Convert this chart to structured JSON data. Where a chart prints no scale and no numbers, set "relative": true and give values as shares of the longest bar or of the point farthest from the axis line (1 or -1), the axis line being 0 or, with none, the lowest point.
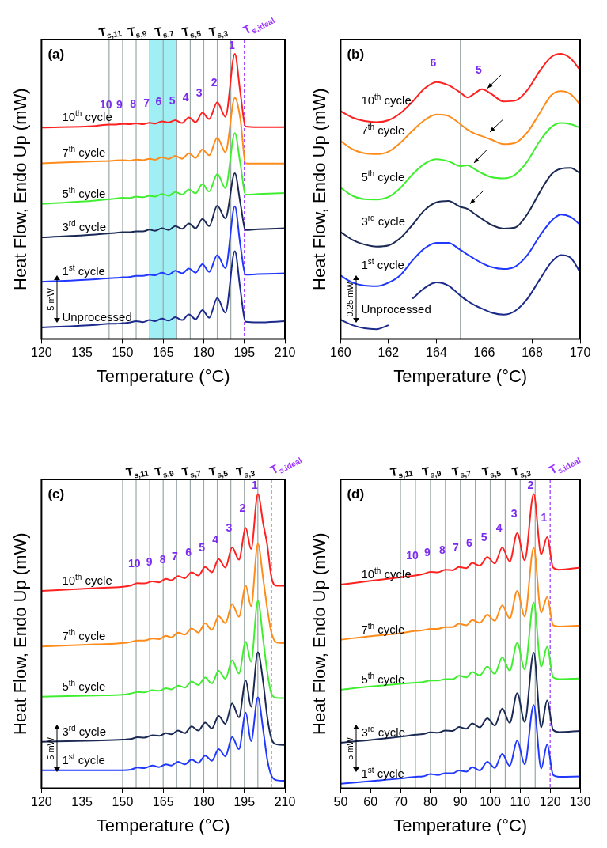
{
  "chart_data": [
    {
      "type": "line",
      "relative": true,
      "xlabel": "Temperature (°C)",
      "ylabel": "Heat Flow, Endo Up (mW)",
      "xlim": [
        120,
        210
      ],
      "xticks": [
        120,
        135,
        150,
        165,
        180,
        195,
        210
      ],
      "legend": false,
      "x": [
        120,
        140,
        145,
        147.5,
        150,
        152.5,
        155,
        157.5,
        160,
        162,
        164.5,
        167,
        169.5,
        172,
        174.5,
        177,
        179.5,
        182,
        185,
        188,
        191.5,
        193.5,
        195.5,
        200,
        210
      ],
      "series": [
        {
          "name": "10$^{th}$ cycle",
          "color": "#ff2020",
          "values": [
            0.741,
            0.747,
            0.752,
            0.752,
            0.754,
            0.753,
            0.756,
            0.753,
            0.758,
            0.755,
            0.763,
            0.759,
            0.767,
            0.757,
            0.777,
            0.76,
            0.793,
            0.771,
            0.83,
            0.779,
            1.0,
            0.865,
            0.745,
            0.743,
            0.743
          ]
        },
        {
          "name": "7$^{th}$ cycle",
          "color": "#ff8c1a",
          "values": [
            0.616,
            0.623,
            0.624,
            0.626,
            0.627,
            0.625,
            0.629,
            0.627,
            0.632,
            0.628,
            0.637,
            0.631,
            0.642,
            0.632,
            0.651,
            0.635,
            0.664,
            0.644,
            0.706,
            0.655,
            0.846,
            0.773,
            0.616,
            0.615,
            0.615
          ]
        },
        {
          "name": "5$^{th}$ cycle",
          "color": "#40ee30",
          "values": [
            0.474,
            0.485,
            0.49,
            0.492,
            0.495,
            0.494,
            0.499,
            0.497,
            0.502,
            0.499,
            0.508,
            0.502,
            0.515,
            0.506,
            0.524,
            0.511,
            0.543,
            0.517,
            0.578,
            0.529,
            0.722,
            0.616,
            0.506,
            0.508,
            0.512
          ]
        },
        {
          "name": "3$^{rd}$ cycle",
          "color": "#1b2a55",
          "values": [
            0.356,
            0.366,
            0.37,
            0.372,
            0.374,
            0.374,
            0.377,
            0.377,
            0.383,
            0.379,
            0.388,
            0.382,
            0.396,
            0.386,
            0.405,
            0.388,
            0.421,
            0.396,
            0.467,
            0.423,
            0.581,
            0.478,
            0.382,
            0.385,
            0.388
          ]
        },
        {
          "name": "1$^{st}$ cycle",
          "color": "#2038ff",
          "values": [
            0.2,
            0.209,
            0.213,
            0.214,
            0.216,
            0.217,
            0.221,
            0.221,
            0.225,
            0.223,
            0.232,
            0.225,
            0.239,
            0.23,
            0.247,
            0.232,
            0.262,
            0.235,
            0.294,
            0.248,
            0.465,
            0.331,
            0.225,
            0.227,
            0.23
          ]
        },
        {
          "name": "Unprocessed",
          "color": "#1c2a8c",
          "values": [
            0.04,
            0.049,
            0.053,
            0.053,
            0.055,
            0.057,
            0.062,
            0.059,
            0.066,
            0.062,
            0.071,
            0.064,
            0.076,
            0.066,
            0.086,
            0.069,
            0.101,
            0.074,
            0.143,
            0.092,
            0.308,
            0.175,
            0.06,
            0.058,
            0.062
          ]
        }
      ],
      "ref_lines": [
        {
          "axis": "x",
          "value": 145,
          "label": "T$_{s,11}$",
          "color": "#9aa8a6"
        },
        {
          "axis": "x",
          "value": 150,
          "label": null,
          "color": "#9aa8a6"
        },
        {
          "axis": "x",
          "value": 155,
          "label": "T$_{s,9}$",
          "color": "#9aa8a6"
        },
        {
          "axis": "x",
          "value": 160,
          "label": null,
          "color": "#9aa8a6"
        },
        {
          "axis": "x",
          "value": 165,
          "label": "T$_{s,7}$",
          "color": "#9aa8a6"
        },
        {
          "axis": "x",
          "value": 170,
          "label": null,
          "color": "#9aa8a6"
        },
        {
          "axis": "x",
          "value": 175,
          "label": "T$_{s,5}$",
          "color": "#9aa8a6"
        },
        {
          "axis": "x",
          "value": 180,
          "label": null,
          "color": "#9aa8a6"
        },
        {
          "axis": "x",
          "value": 185,
          "label": "T$_{s,3}$",
          "color": "#9aa8a6"
        },
        {
          "axis": "x",
          "value": 190,
          "label": null,
          "color": "#9aa8a6"
        },
        {
          "axis": "x",
          "value": 195,
          "label": "T$_{s,ideal}$",
          "color": "#9b30ff",
          "line_style": "dashed"
        }
      ],
      "bands": [
        {
          "axis": "x",
          "from": 160,
          "to": 170,
          "label": null,
          "color": "#8fecf2"
        }
      ],
      "annotations": [
        "(a)",
        "5 mW",
        {
          "text": "10",
          "x": 145,
          "y": 0.752
        },
        {
          "text": "9",
          "x": 150,
          "y": 0.754
        },
        {
          "text": "8",
          "x": 155,
          "y": 0.756
        },
        {
          "text": "7",
          "x": 160,
          "y": 0.758
        },
        {
          "text": "6",
          "x": 164.5,
          "y": 0.763
        },
        {
          "text": "5",
          "x": 169.5,
          "y": 0.767
        },
        {
          "text": "4",
          "x": 174.5,
          "y": 0.777
        },
        {
          "text": "3",
          "x": 179.5,
          "y": 0.793
        },
        {
          "text": "2",
          "x": 185,
          "y": 0.83
        },
        {
          "text": "1",
          "x": 191.5,
          "y": 1.0
        }
      ]
    },
    {
      "type": "line",
      "relative": true,
      "xlabel": "Temperature (°C)",
      "ylabel": "Heat Flow, Endo Up (mW)",
      "xlim": [
        160,
        170
      ],
      "xticks": [
        160,
        162,
        164,
        166,
        168,
        170
      ],
      "legend": false,
      "x": [
        160,
        160.5,
        161,
        161.5,
        162,
        162.5,
        163,
        163.5,
        164,
        164.5,
        165,
        165.3,
        165.6,
        165.9,
        166.3,
        166.8,
        167.3,
        167.8,
        168.3,
        168.8,
        169.2,
        169.6,
        170
      ],
      "series": [
        {
          "name": "10$^{th}$ cycle",
          "color": "#ff2020",
          "values": [
            0.799,
            0.776,
            0.764,
            0.76,
            0.767,
            0.792,
            0.832,
            0.878,
            0.901,
            0.89,
            0.864,
            0.847,
            0.861,
            0.876,
            0.859,
            0.833,
            0.836,
            0.873,
            0.938,
            0.989,
            1.0,
            0.984,
            0.943
          ]
        },
        {
          "name": "7$^{th}$ cycle",
          "color": "#ff8c1a",
          "values": [
            0.694,
            0.665,
            0.651,
            0.648,
            0.657,
            0.688,
            0.73,
            0.767,
            0.787,
            0.782,
            0.753,
            0.734,
            0.72,
            0.711,
            0.699,
            0.683,
            0.688,
            0.725,
            0.79,
            0.855,
            0.869,
            0.859,
            0.822
          ]
        },
        {
          "name": "5$^{th}$ cycle",
          "color": "#40ee30",
          "values": [
            0.53,
            0.502,
            0.49,
            0.489,
            0.498,
            0.53,
            0.577,
            0.614,
            0.63,
            0.623,
            0.606,
            0.609,
            0.595,
            0.581,
            0.567,
            0.563,
            0.577,
            0.623,
            0.692,
            0.743,
            0.757,
            0.753,
            0.741
          ]
        },
        {
          "name": "3$^{rd}$ cycle",
          "color": "#1b2a55",
          "values": [
            0.375,
            0.347,
            0.331,
            0.324,
            0.328,
            0.354,
            0.4,
            0.451,
            0.479,
            0.484,
            0.463,
            0.456,
            0.438,
            0.421,
            0.4,
            0.387,
            0.391,
            0.438,
            0.512,
            0.577,
            0.597,
            0.6,
            0.581
          ]
        },
        {
          "name": "1$^{st}$ cycle",
          "color": "#2038ff",
          "values": [
            0.222,
            0.197,
            0.187,
            0.185,
            0.197,
            0.224,
            0.275,
            0.317,
            0.337,
            0.337,
            0.312,
            0.296,
            0.28,
            0.266,
            0.252,
            0.245,
            0.254,
            0.294,
            0.359,
            0.414,
            0.436,
            0.428,
            0.4
          ]
        },
        {
          "name": "Unprocessed",
          "color": "#1c2a8c",
          "values": [
            0.067,
            0.048,
            0.037,
            0.034,
            0.048,
            null,
            0.141,
            0.178,
            0.198,
            0.187,
            0.152,
            0.133,
            0.118,
            0.106,
            0.092,
            0.085,
            0.099,
            0.141,
            0.206,
            0.269,
            0.294,
            0.285,
            0.234
          ]
        }
      ],
      "ref_lines": [
        {
          "axis": "x",
          "value": 165,
          "label": null,
          "color": "#9aa8a6"
        }
      ],
      "annotations": [
        "(b)",
        "0.25 mW",
        {
          "text": "6",
          "x": 164,
          "y": 0.901
        },
        {
          "text": "5",
          "x": 165.9,
          "y": 0.876
        }
      ]
    },
    {
      "type": "line",
      "relative": true,
      "xlabel": "Temperature (°C)",
      "ylabel": "Heat Flow, Endo Up (mW)",
      "xlim": [
        120,
        210
      ],
      "xticks": [
        120,
        135,
        150,
        165,
        180,
        195,
        210
      ],
      "legend": false,
      "x": [
        120,
        140,
        150,
        153,
        155.5,
        158,
        161,
        163.5,
        166,
        168,
        170.5,
        173,
        175.5,
        178,
        180.5,
        183,
        185.5,
        188,
        190.5,
        193,
        195.5,
        197.5,
        200,
        202,
        203.5,
        205,
        207,
        210
      ],
      "series": [
        {
          "name": "10$^{th}$ cycle",
          "color": "#ff2020",
          "values": [
            0.671,
            0.68,
            0.685,
            0.689,
            0.697,
            0.696,
            0.703,
            0.7,
            0.712,
            0.707,
            0.721,
            0.714,
            0.734,
            0.723,
            0.752,
            0.734,
            0.779,
            0.75,
            0.819,
            0.777,
            0.885,
            0.813,
            1.0,
            0.898,
            0.826,
            0.718,
            0.688,
            0.688
          ]
        },
        {
          "name": "7$^{th}$ cycle",
          "color": "#ff8c1a",
          "values": [
            0.482,
            0.489,
            0.493,
            0.497,
            0.502,
            0.502,
            0.509,
            0.507,
            0.518,
            0.513,
            0.529,
            0.522,
            0.543,
            0.529,
            0.561,
            0.538,
            0.585,
            0.561,
            0.626,
            0.583,
            0.689,
            0.619,
            0.831,
            0.709,
            0.61,
            0.529,
            0.495,
            0.493
          ]
        },
        {
          "name": "5$^{th}$ cycle",
          "color": "#40ee30",
          "values": [
            0.311,
            0.315,
            0.318,
            0.322,
            0.327,
            0.326,
            0.333,
            0.331,
            0.34,
            0.336,
            0.349,
            0.342,
            0.363,
            0.351,
            0.376,
            0.356,
            0.399,
            0.372,
            0.435,
            0.39,
            0.498,
            0.43,
            0.637,
            0.502,
            0.394,
            0.322,
            0.307,
            0.306
          ]
        },
        {
          "name": "3$^{rd}$ cycle",
          "color": "#1b2a55",
          "values": [
            0.158,
            0.162,
            0.165,
            0.167,
            0.173,
            0.172,
            0.18,
            0.178,
            0.187,
            0.183,
            0.196,
            0.187,
            0.21,
            0.196,
            0.223,
            0.203,
            0.246,
            0.219,
            0.288,
            0.241,
            0.367,
            0.277,
            0.462,
            0.358,
            0.241,
            0.169,
            0.149,
            0.147
          ]
        },
        {
          "name": "1$^{st}$ cycle",
          "color": "#2038ff",
          "values": [
            0.061,
            0.061,
            0.061,
            0.063,
            0.07,
            0.068,
            0.077,
            0.072,
            0.081,
            0.077,
            0.09,
            0.081,
            0.097,
            0.086,
            0.111,
            0.093,
            0.133,
            0.108,
            0.174,
            0.133,
            0.257,
            0.16,
            0.309,
            0.196,
            0.097,
            0.043,
            0.027,
            0.025
          ]
        }
      ],
      "ref_lines": [
        {
          "axis": "x",
          "value": 150,
          "label": null,
          "color": "#9aa8a6"
        },
        {
          "axis": "x",
          "value": 155,
          "label": "T$_{s,11}$",
          "color": "#9aa8a6"
        },
        {
          "axis": "x",
          "value": 160,
          "label": null,
          "color": "#9aa8a6"
        },
        {
          "axis": "x",
          "value": 165,
          "label": "T$_{s,9}$",
          "color": "#9aa8a6"
        },
        {
          "axis": "x",
          "value": 170,
          "label": null,
          "color": "#9aa8a6"
        },
        {
          "axis": "x",
          "value": 175,
          "label": "T$_{s,7}$",
          "color": "#9aa8a6"
        },
        {
          "axis": "x",
          "value": 180,
          "label": null,
          "color": "#9aa8a6"
        },
        {
          "axis": "x",
          "value": 185,
          "label": "T$_{s,5}$",
          "color": "#9aa8a6"
        },
        {
          "axis": "x",
          "value": 190,
          "label": null,
          "color": "#9aa8a6"
        },
        {
          "axis": "x",
          "value": 195,
          "label": "T$_{s,3}$",
          "color": "#9aa8a6"
        },
        {
          "axis": "x",
          "value": 200,
          "label": null,
          "color": "#9aa8a6"
        },
        {
          "axis": "x",
          "value": 205,
          "label": "T$_{s,ideal}$",
          "color": "#9b30ff",
          "line_style": "dashed"
        }
      ],
      "annotations": [
        "(c)",
        "5 mW",
        {
          "text": "10",
          "x": 155.5,
          "y": 0.697
        },
        {
          "text": "9",
          "x": 161,
          "y": 0.703
        },
        {
          "text": "8",
          "x": 166,
          "y": 0.712
        },
        {
          "text": "7",
          "x": 170.5,
          "y": 0.721
        },
        {
          "text": "6",
          "x": 175.5,
          "y": 0.734
        },
        {
          "text": "5",
          "x": 180.5,
          "y": 0.752
        },
        {
          "text": "4",
          "x": 185.5,
          "y": 0.779
        },
        {
          "text": "3",
          "x": 190.5,
          "y": 0.819
        },
        {
          "text": "2",
          "x": 195.5,
          "y": 0.885
        },
        {
          "text": "1",
          "x": 200,
          "y": 1.0
        }
      ]
    },
    {
      "type": "line",
      "relative": true,
      "xlabel": "Temperature (°C)",
      "ylabel": "Heat Flow, Endo Up (mW)",
      "xlim": [
        50,
        130
      ],
      "xticks": [
        50,
        60,
        70,
        80,
        90,
        100,
        110,
        120,
        130
      ],
      "legend": false,
      "x": [
        50,
        60,
        70,
        75,
        77.5,
        80,
        82.5,
        85,
        87.5,
        89.5,
        92,
        94,
        96.5,
        99,
        101.5,
        104,
        106.5,
        109,
        111.5,
        114.5,
        117,
        119,
        121,
        123,
        130
      ],
      "series": [
        {
          "name": "10$^{th}$ cycle",
          "color": "#ff2020",
          "values": [
            0.692,
            0.705,
            0.717,
            0.723,
            0.728,
            0.735,
            0.734,
            0.743,
            0.741,
            0.752,
            0.748,
            0.766,
            0.757,
            0.786,
            0.764,
            0.818,
            0.771,
            0.867,
            0.775,
            1.0,
            0.795,
            0.854,
            0.75,
            0.743,
            0.75
          ]
        },
        {
          "name": "7$^{th}$ cycle",
          "color": "#ff8c1a",
          "values": [
            0.505,
            0.517,
            0.527,
            0.535,
            0.537,
            0.542,
            0.542,
            0.548,
            0.548,
            0.559,
            0.554,
            0.572,
            0.562,
            0.59,
            0.569,
            0.622,
            0.578,
            0.671,
            0.584,
            0.818,
            0.597,
            0.65,
            0.554,
            0.55,
            0.553
          ]
        },
        {
          "name": "5$^{th}$ cycle",
          "color": "#40ee30",
          "values": [
            0.335,
            0.346,
            0.355,
            0.359,
            0.361,
            0.366,
            0.366,
            0.371,
            0.371,
            0.382,
            0.377,
            0.395,
            0.384,
            0.413,
            0.389,
            0.445,
            0.4,
            0.494,
            0.404,
            0.632,
            0.413,
            0.481,
            0.377,
            0.371,
            0.373
          ]
        },
        {
          "name": "3$^{rd}$ cycle",
          "color": "#1b2a55",
          "values": [
            0.155,
            0.164,
            0.175,
            0.182,
            0.184,
            0.19,
            0.189,
            0.196,
            0.195,
            0.208,
            0.202,
            0.22,
            0.207,
            0.238,
            0.213,
            0.271,
            0.222,
            0.323,
            0.225,
            0.461,
            0.207,
            0.298,
            0.198,
            0.191,
            0.195
          ]
        },
        {
          "name": "1$^{st}$ cycle",
          "color": "#2038ff",
          "values": [
            0.015,
            0.024,
            0.033,
            0.039,
            0.04,
            0.048,
            0.045,
            0.051,
            0.051,
            0.06,
            0.056,
            0.072,
            0.06,
            0.09,
            0.069,
            0.117,
            0.076,
            0.162,
            0.081,
            0.283,
            0.067,
            0.148,
            0.045,
            0.039,
            0.04
          ]
        }
      ],
      "ref_lines": [
        {
          "axis": "x",
          "value": 70,
          "label": "T$_{s,11}$",
          "color": "#9aa8a6"
        },
        {
          "axis": "x",
          "value": 75,
          "label": null,
          "color": "#9aa8a6"
        },
        {
          "axis": "x",
          "value": 80,
          "label": "T$_{s,9}$",
          "color": "#9aa8a6"
        },
        {
          "axis": "x",
          "value": 85,
          "label": null,
          "color": "#9aa8a6"
        },
        {
          "axis": "x",
          "value": 90,
          "label": "T$_{s,7}$",
          "color": "#9aa8a6"
        },
        {
          "axis": "x",
          "value": 95,
          "label": null,
          "color": "#9aa8a6"
        },
        {
          "axis": "x",
          "value": 100,
          "label": "T$_{s,5}$",
          "color": "#9aa8a6"
        },
        {
          "axis": "x",
          "value": 105,
          "label": null,
          "color": "#9aa8a6"
        },
        {
          "axis": "x",
          "value": 110,
          "label": "T$_{s,3}$",
          "color": "#9aa8a6"
        },
        {
          "axis": "x",
          "value": 115,
          "label": null,
          "color": "#9aa8a6"
        },
        {
          "axis": "x",
          "value": 120,
          "label": "T$_{s,ideal}$",
          "color": "#9b30ff",
          "line_style": "dashed"
        }
      ],
      "annotations": [
        "(d)",
        "5 mW",
        {
          "text": "10",
          "x": 75,
          "y": 0.723
        },
        {
          "text": "9",
          "x": 80,
          "y": 0.735
        },
        {
          "text": "8",
          "x": 85,
          "y": 0.743
        },
        {
          "text": "7",
          "x": 89.5,
          "y": 0.752
        },
        {
          "text": "6",
          "x": 94,
          "y": 0.766
        },
        {
          "text": "5",
          "x": 99,
          "y": 0.786
        },
        {
          "text": "4",
          "x": 104,
          "y": 0.818
        },
        {
          "text": "3",
          "x": 109,
          "y": 0.867
        },
        {
          "text": "2",
          "x": 114.5,
          "y": 1.0
        },
        {
          "text": "1",
          "x": 119,
          "y": 0.854
        }
      ]
    }
  ]
}
